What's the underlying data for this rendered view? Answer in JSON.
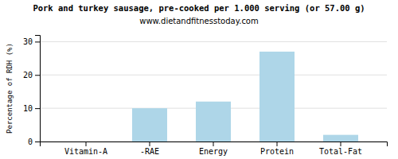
{
  "chart_data": {
    "type": "bar",
    "title": "Pork and turkey sausage, pre-cooked per 1.000 serving (or 57.00 g)",
    "subtitle": "www.dietandfitnesstoday.com",
    "y_label": "Percentage of RDH (%)",
    "categories": [
      "Vitamin-A",
      "-RAE",
      "Energy",
      "Protein",
      "Total-Fat"
    ],
    "values": [
      0.0,
      10.0,
      12.0,
      27.0,
      2.0
    ],
    "color": "#aed6e8",
    "ylim": [
      0,
      32
    ],
    "yticks": [
      0,
      10,
      20,
      30
    ],
    "grid": true
  }
}
